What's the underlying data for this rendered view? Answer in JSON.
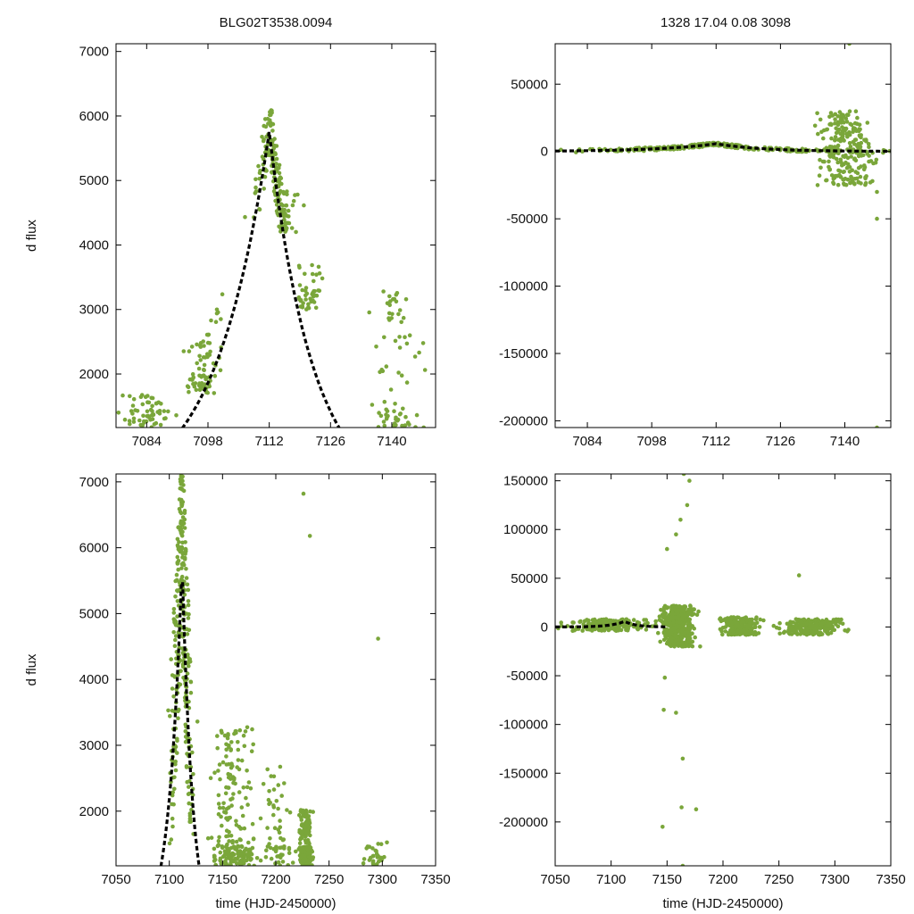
{
  "figure": {
    "title_left": "BLG02T3538.0094",
    "title_right": "1328  17.04  0.08  3098"
  },
  "colors": {
    "points": "#7aa63a",
    "model": "#000000",
    "axes": "#000000"
  },
  "chart_data": [
    {
      "id": "top-left",
      "type": "scatter",
      "title": "BLG02T3538.0094",
      "xlabel": "",
      "ylabel": "d flux",
      "xlim": [
        7077,
        7150
      ],
      "ylim": [
        1170,
        7120
      ],
      "xticks": [
        7084,
        7098,
        7112,
        7126,
        7140
      ],
      "yticks": [
        2000,
        3000,
        4000,
        5000,
        6000,
        7000
      ],
      "model": {
        "t0": 7112,
        "peak": 5760,
        "base": 0,
        "rise": 12.4,
        "fall": 10.0
      },
      "series": [
        {
          "name": "baseline-early",
          "center": 7084,
          "spread": 6,
          "ylo": 1170,
          "yhi": 2600,
          "count": 60
        },
        {
          "name": "rise",
          "center": 7097,
          "spread": 4,
          "ylo": 1700,
          "yhi": 4100,
          "count": 80
        },
        {
          "name": "peak",
          "center": 7113.5,
          "spread": 4.5,
          "ylo": 4200,
          "yhi": 6100,
          "count": 170
        },
        {
          "name": "decline",
          "center": 7121,
          "spread": 3,
          "ylo": 3000,
          "yhi": 5100,
          "count": 45
        },
        {
          "name": "late-tail",
          "center": 7141,
          "spread": 6,
          "ylo": 1170,
          "yhi": 7100,
          "count": 75
        }
      ]
    },
    {
      "id": "top-right",
      "type": "scatter",
      "title": "1328  17.04  0.08  3098",
      "xlabel": "",
      "ylabel": "",
      "xlim": [
        7077,
        7150
      ],
      "ylim": [
        -205000,
        80000
      ],
      "xticks": [
        7084,
        7098,
        7112,
        7126,
        7140
      ],
      "yticks": [
        -200000,
        -150000,
        -100000,
        -50000,
        0,
        50000
      ],
      "model": {
        "t0": 7112,
        "peak": 5760,
        "base": 0,
        "rise": 12.4,
        "fall": 10.0
      },
      "series": [
        {
          "name": "baseline",
          "center": 7112,
          "spread": 30,
          "ylo": -1500,
          "yhi": 9000,
          "count": 320
        },
        {
          "name": "noisy-late",
          "center": 7140,
          "spread": 6,
          "ylo": -25000,
          "yhi": 30000,
          "count": 220
        },
        {
          "name": "outliers",
          "points": [
            [
              7141,
              80000
            ],
            [
              7147,
              -205000
            ],
            [
              7147,
              -50000
            ],
            [
              7147,
              -30000
            ],
            [
              7146,
              -22000
            ]
          ]
        }
      ]
    },
    {
      "id": "bottom-left",
      "type": "scatter",
      "title": "",
      "xlabel": "time (HJD-2450000)",
      "ylabel": "d flux",
      "xlim": [
        7050,
        7350
      ],
      "ylim": [
        1170,
        7120
      ],
      "xticks": [
        7050,
        7100,
        7150,
        7200,
        7250,
        7300,
        7350
      ],
      "yticks": [
        2000,
        3000,
        4000,
        5000,
        6000,
        7000
      ],
      "model": {
        "t0": 7112,
        "peak": 5760,
        "base": 0,
        "rise": 12.4,
        "fall": 10.0
      },
      "series": [
        {
          "name": "main-peak",
          "center": 7112,
          "spread": 10,
          "ylo": 1200,
          "yhi": 7100,
          "count": 300
        },
        {
          "name": "post-peak",
          "center": 7160,
          "spread": 20,
          "ylo": 1170,
          "yhi": 7100,
          "count": 220
        },
        {
          "name": "mid-season",
          "center": 7200,
          "spread": 15,
          "ylo": 1170,
          "yhi": 5400,
          "count": 60
        },
        {
          "name": "late-cluster",
          "center": 7228,
          "spread": 6,
          "ylo": 1170,
          "yhi": 3600,
          "count": 200
        },
        {
          "name": "end-season",
          "center": 7293,
          "spread": 10,
          "ylo": 1170,
          "yhi": 2200,
          "count": 30
        },
        {
          "name": "outliers",
          "points": [
            [
              7296,
              4620
            ],
            [
              7232,
              6180
            ],
            [
              7226,
              6820
            ]
          ]
        }
      ]
    },
    {
      "id": "bottom-right",
      "type": "scatter",
      "title": "",
      "xlabel": "time (HJD-2450000)",
      "ylabel": "",
      "xlim": [
        7050,
        7350
      ],
      "ylim": [
        -245000,
        157000
      ],
      "xticks": [
        7050,
        7100,
        7150,
        7200,
        7250,
        7300,
        7350
      ],
      "yticks": [
        -200000,
        -150000,
        -100000,
        -50000,
        0,
        50000,
        100000,
        150000
      ],
      "model": {
        "t0": 7112,
        "peak": 5760,
        "base": 0,
        "rise": 12.4,
        "fall": 10.0
      },
      "model_xmax": 7150,
      "series": [
        {
          "name": "baseline-1",
          "center": 7100,
          "spread": 40,
          "ylo": -4000,
          "yhi": 8000,
          "count": 200
        },
        {
          "name": "noisy-core",
          "center": 7160,
          "spread": 14,
          "ylo": -20000,
          "yhi": 22000,
          "count": 450
        },
        {
          "name": "baseline-2",
          "center": 7215,
          "spread": 16,
          "ylo": -8000,
          "yhi": 10000,
          "count": 220
        },
        {
          "name": "baseline-3",
          "center": 7280,
          "spread": 28,
          "ylo": -8000,
          "yhi": 8000,
          "count": 240
        },
        {
          "name": "outliers",
          "points": [
            [
              7165,
              157000
            ],
            [
              7170,
              150000
            ],
            [
              7168,
              125000
            ],
            [
              7162,
              110000
            ],
            [
              7158,
              95000
            ],
            [
              7150,
              80000
            ],
            [
              7146,
              -205000
            ],
            [
              7164,
              -245000
            ],
            [
              7163,
              -185000
            ],
            [
              7176,
              -187000
            ],
            [
              7164,
              -135000
            ],
            [
              7158,
              -88000
            ],
            [
              7147,
              -85000
            ],
            [
              7148,
              -52000
            ],
            [
              7268,
              53000
            ]
          ]
        }
      ]
    }
  ]
}
